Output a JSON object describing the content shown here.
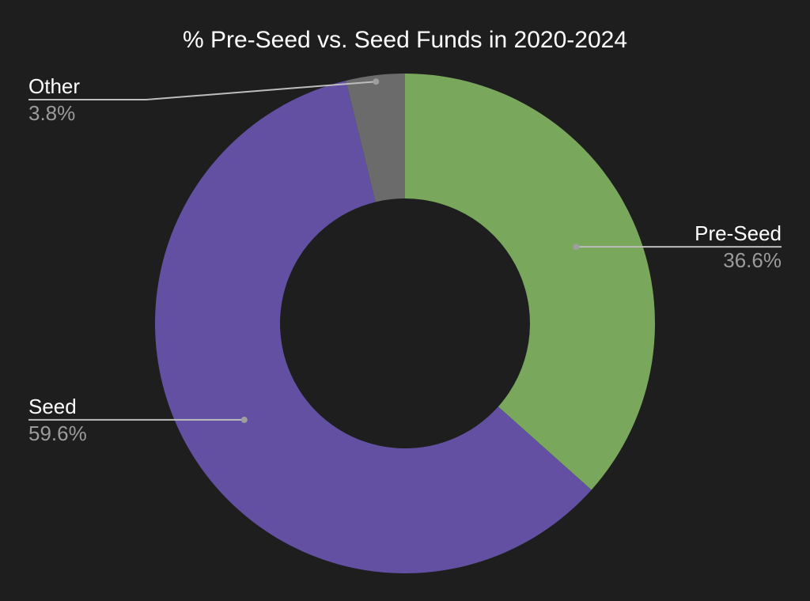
{
  "chart_data": {
    "type": "pie",
    "donut": true,
    "title": "% Pre-Seed vs. Seed Funds in 2020-2024",
    "slices": [
      {
        "label": "Pre-Seed",
        "value": 36.6,
        "display": "36.6%",
        "color": "#79a85d",
        "side": "right"
      },
      {
        "label": "Seed",
        "value": 59.6,
        "display": "59.6%",
        "color": "#6350a3",
        "side": "left"
      },
      {
        "label": "Other",
        "value": 3.8,
        "display": "3.8%",
        "color": "#6b6b6b",
        "side": "left"
      }
    ],
    "legend": "none",
    "grid": false
  },
  "colors": {
    "background": "#1e1e1e",
    "title": "#ffffff",
    "label": "#ffffff",
    "value": "#9b9b9b",
    "leader": "#bdbdbd"
  }
}
